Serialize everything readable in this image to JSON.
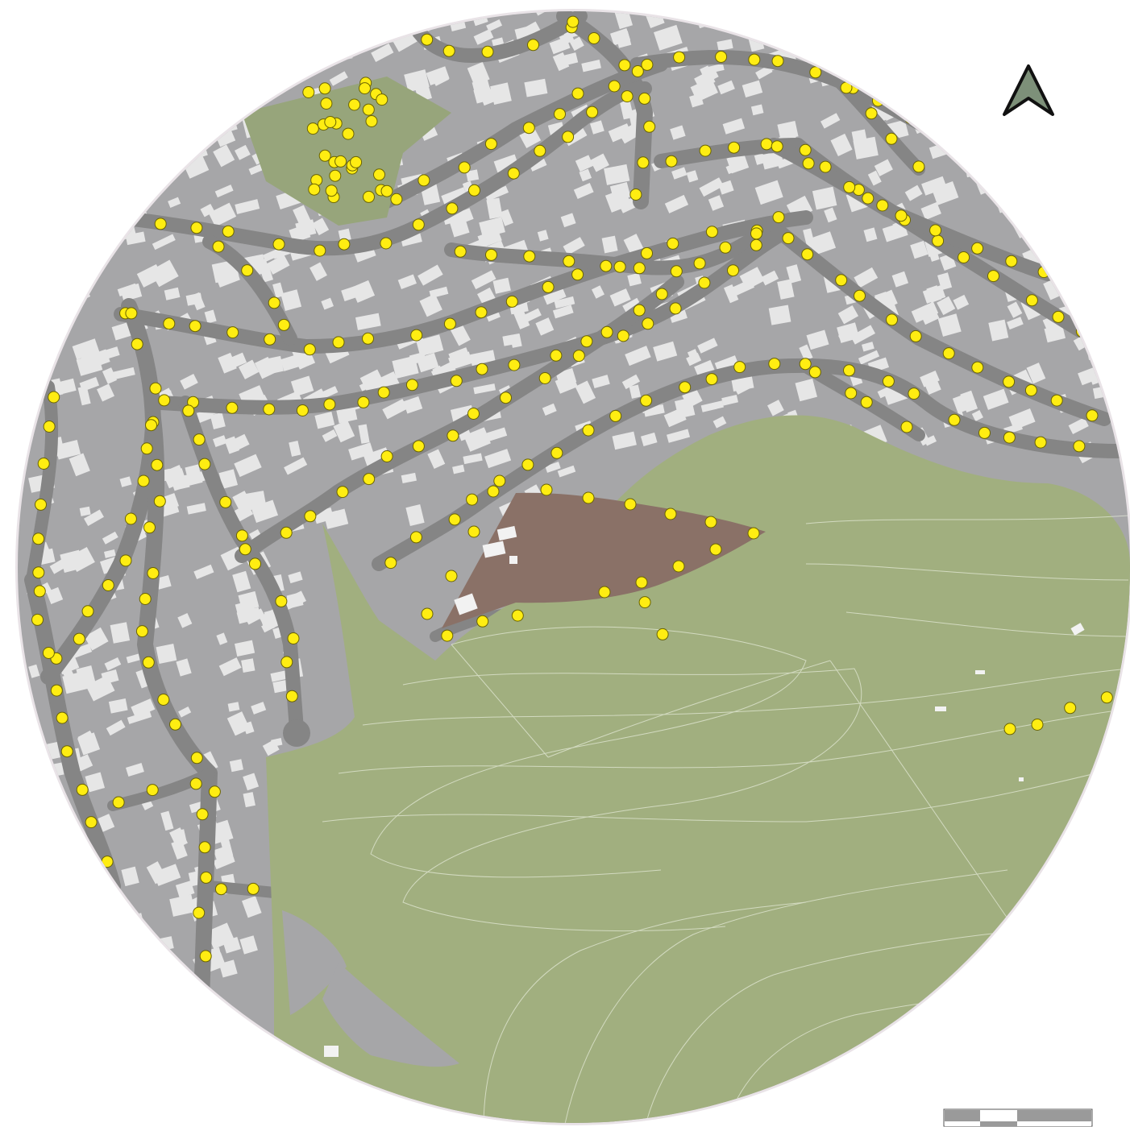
{
  "map": {
    "colors": {
      "background": "#ffffff",
      "ring": "#e9e3e7",
      "urban_ground": "#a6a6a8",
      "street": "#858585",
      "building": "#e6e6e6",
      "parcel_line": "#c4c4c6",
      "park": "#a1af7f",
      "small_park": "#97a57b",
      "contour": "#e8eddc",
      "plaza": "#8a7167",
      "plaza_building": "#f2f2f2",
      "marker_fill": "#ffed12",
      "marker_stroke": "#6b6400"
    },
    "layers": [
      "urban-blocks",
      "buildings",
      "streets",
      "park-area",
      "contour-lines",
      "plaza",
      "point-markers"
    ],
    "marker_count_note": ""
  },
  "north_arrow": {
    "icon": "north-arrow-icon",
    "fill": "#7d9079",
    "stroke": "#111111"
  },
  "scale_bar": {
    "segments": [
      "#9a9a9a",
      "#ffffff",
      "#9a9a9a"
    ],
    "icon": "scale-bar-icon"
  }
}
